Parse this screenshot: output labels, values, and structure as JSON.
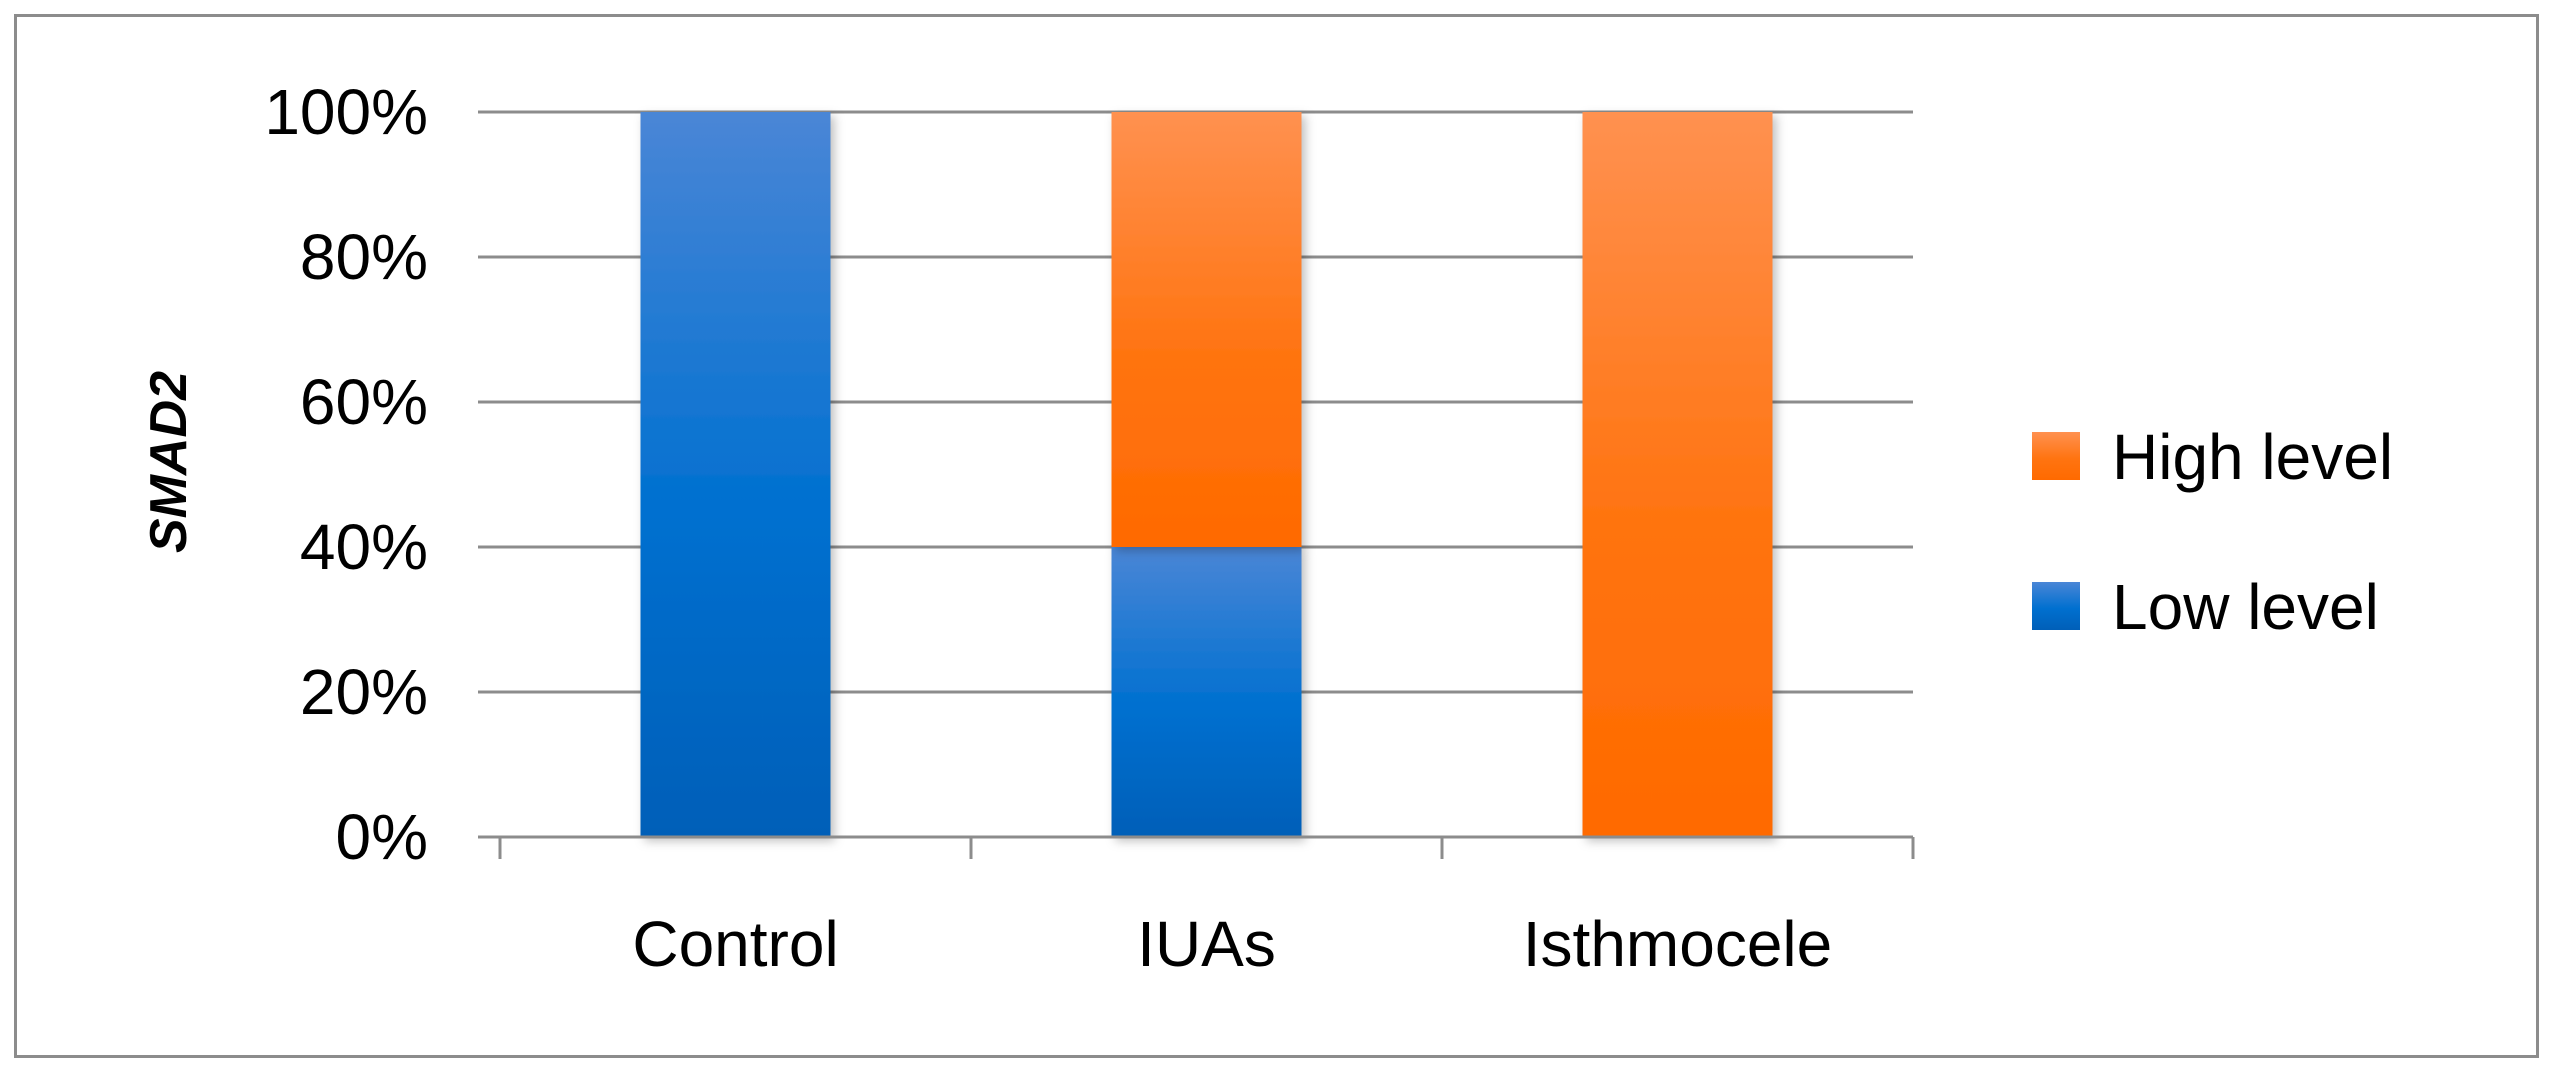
{
  "chart_data": {
    "type": "bar",
    "stacked": true,
    "percent_stacked": true,
    "categories": [
      "Control",
      "IUAs",
      "Isthmocele"
    ],
    "series": [
      {
        "name": "Low level",
        "values": [
          100,
          40,
          0
        ],
        "color": "#0070d0"
      },
      {
        "name": "High level",
        "values": [
          0,
          60,
          100
        ],
        "color": "#ff7a1a"
      }
    ],
    "ylabel": "SMAD2",
    "xlabel": "",
    "ylim": [
      0,
      100
    ],
    "y_ticks": [
      "0%",
      "20%",
      "40%",
      "60%",
      "80%",
      "100%"
    ],
    "grid": true,
    "legend": {
      "position": "right",
      "entries": [
        "High level",
        "Low level"
      ]
    }
  }
}
